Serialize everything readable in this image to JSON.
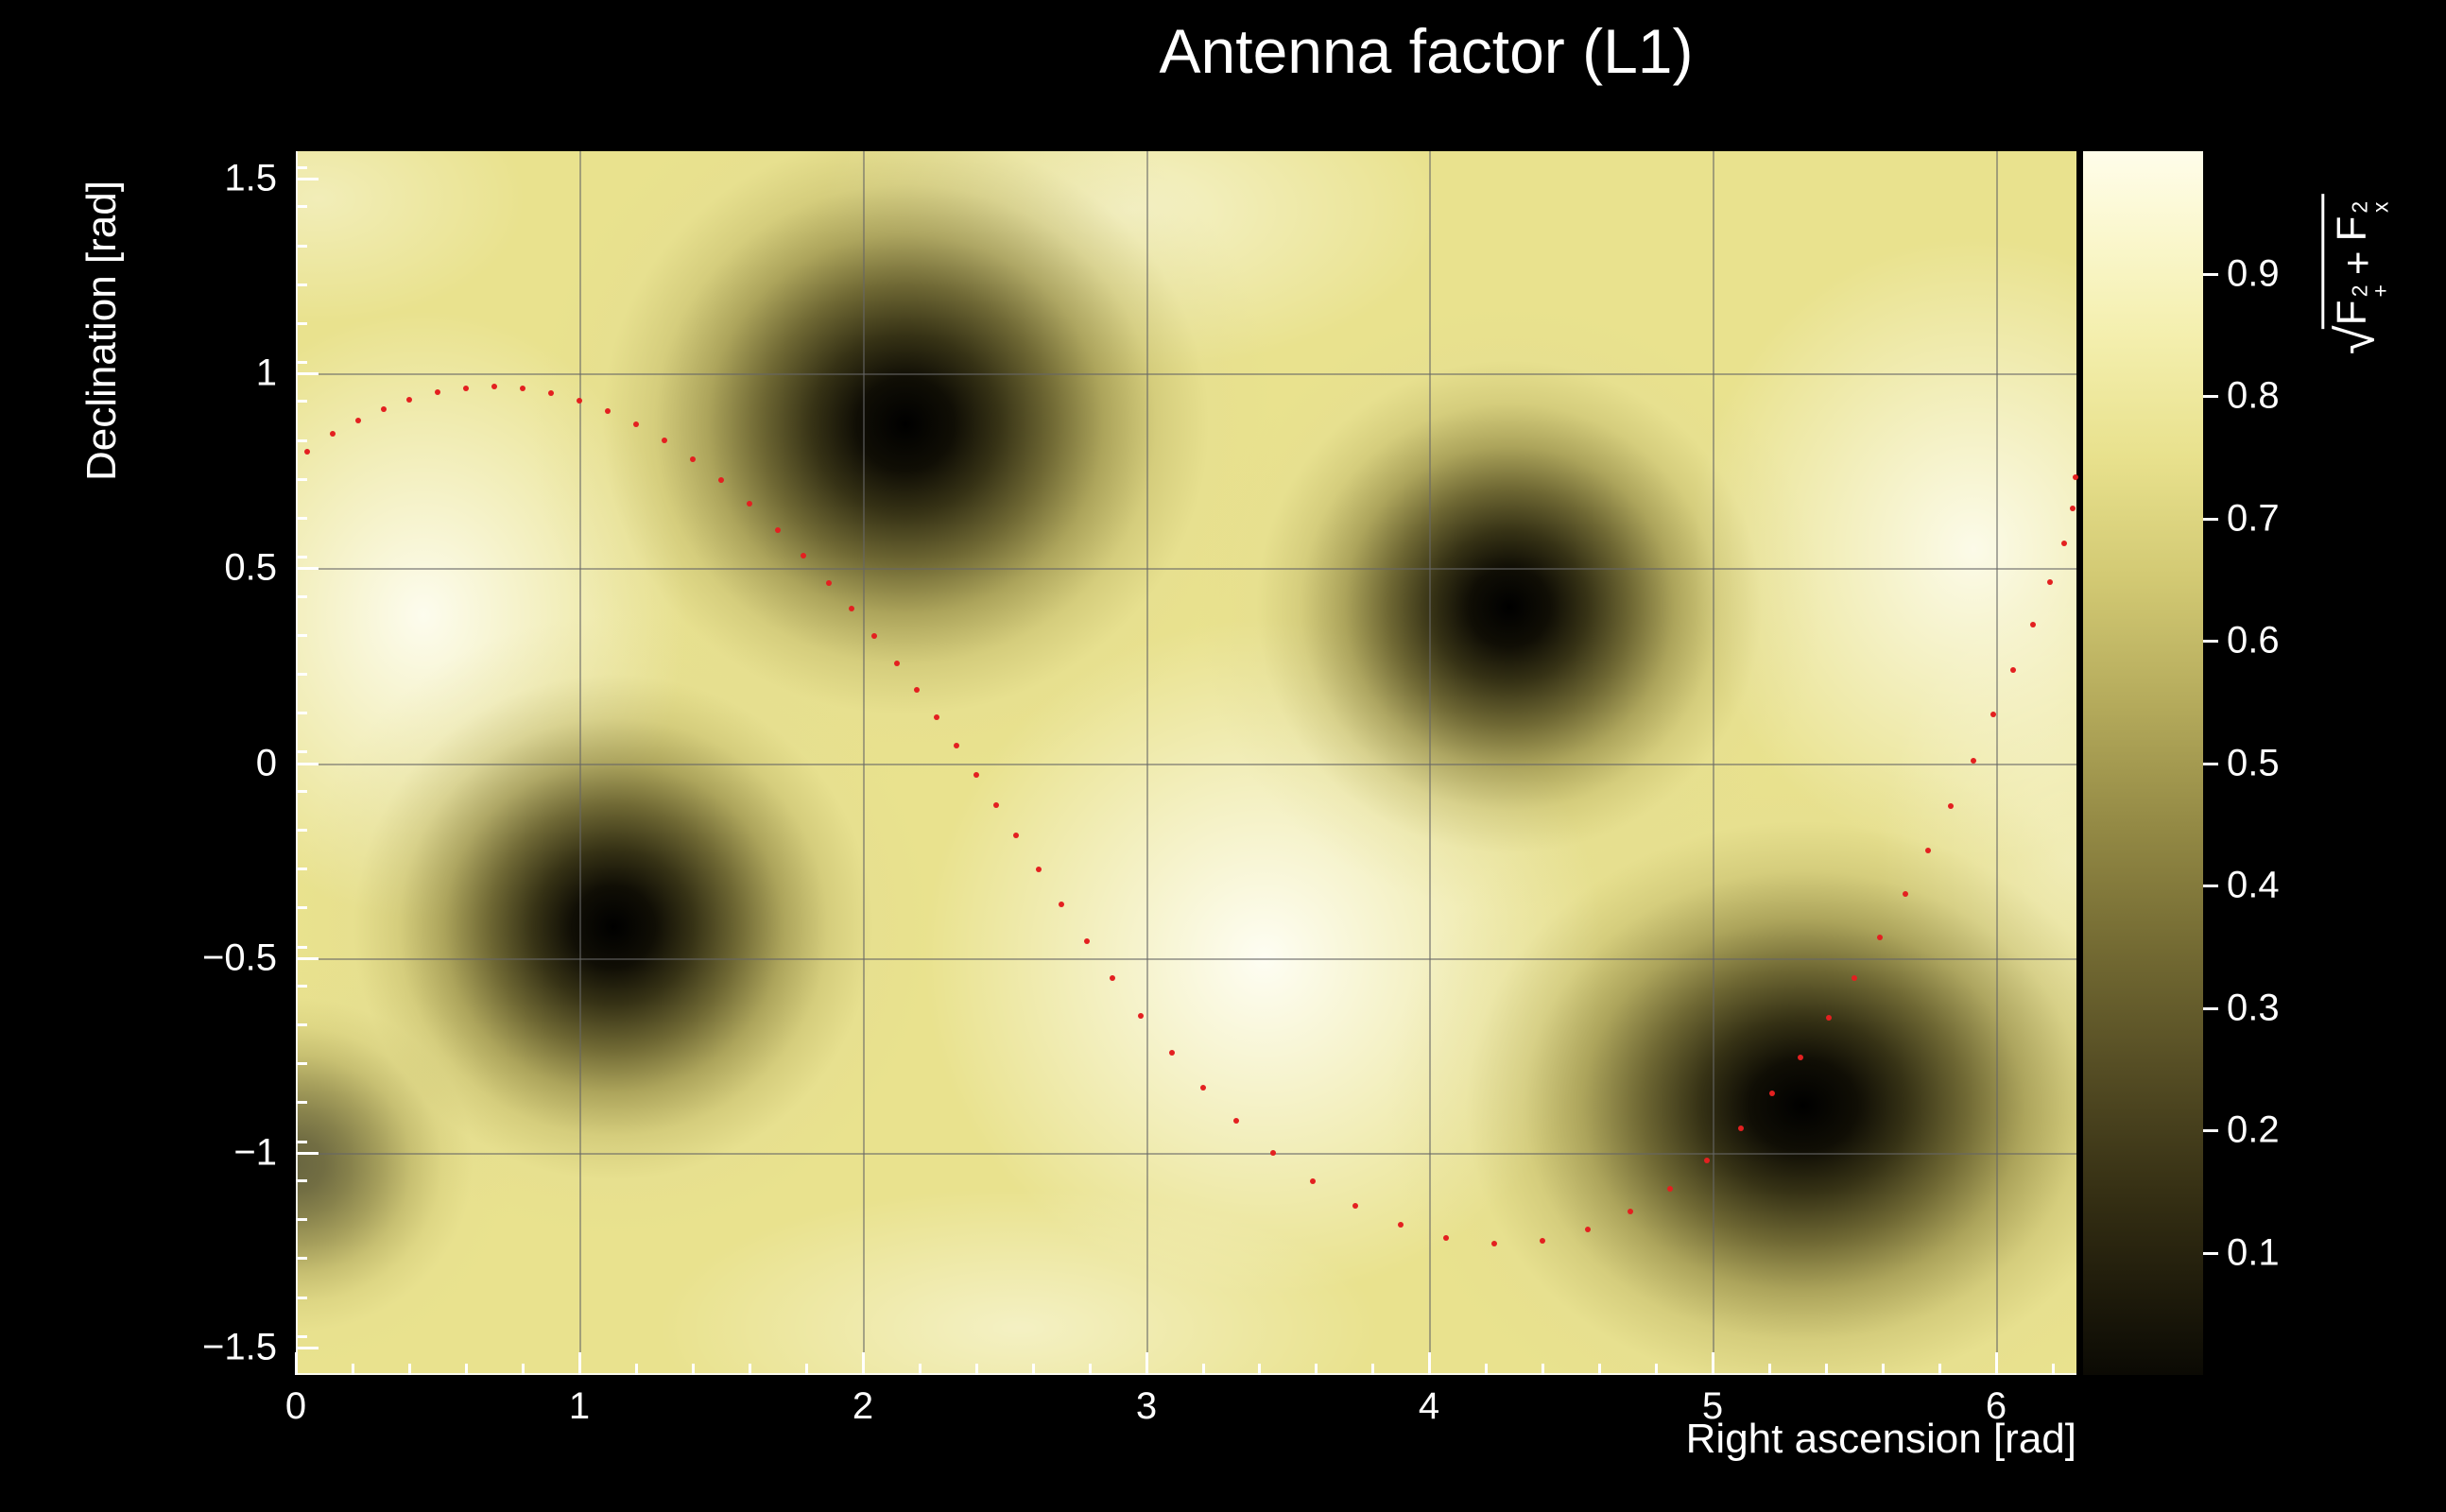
{
  "chart_data": {
    "type": "heatmap",
    "title": "Antenna factor (L1)",
    "xlabel": "Right ascension [rad]",
    "ylabel": "Declination [rad]",
    "zlabel": "sqrt(F_+^2 + F_x^2)",
    "xlim": [
      0,
      6.2832
    ],
    "ylim": [
      -1.5708,
      1.5708
    ],
    "zlim": [
      0,
      1
    ],
    "grid": {
      "x": [
        1,
        2,
        3,
        4,
        5,
        6
      ],
      "y": [
        -1,
        -0.5,
        0,
        0.5,
        1
      ]
    },
    "x_minor_step": 0.2,
    "y_minor_step": 0.1,
    "base_value": 0.62,
    "minima": [
      {
        "x": 2.15,
        "y": 0.87,
        "value": 0.02,
        "rx": 1.32,
        "ry": 0.92,
        "strength": 1
      },
      {
        "x": 4.28,
        "y": 0.4,
        "value": 0.02,
        "rx": 1.1,
        "ry": 0.78,
        "strength": 1
      },
      {
        "x": 1.12,
        "y": -0.42,
        "value": 0.02,
        "rx": 1.13,
        "ry": 0.8,
        "strength": 1
      },
      {
        "x": 5.32,
        "y": -0.88,
        "value": 0.02,
        "rx": 1.47,
        "ry": 0.9,
        "strength": 1
      },
      {
        "x": 0.0,
        "y": -1.03,
        "value": 0.3,
        "rx": 0.77,
        "ry": 0.53,
        "strength": 0.55
      }
    ],
    "maxima": [
      {
        "x": 0.45,
        "y": 0.38,
        "value": 0.95,
        "rx": 0.93,
        "ry": 0.78,
        "a": 0.9
      },
      {
        "x": 3.42,
        "y": -0.5,
        "value": 0.97,
        "rx": 1.2,
        "ry": 0.87,
        "a": 0.95
      },
      {
        "x": 5.92,
        "y": 0.55,
        "value": 0.95,
        "rx": 1.0,
        "ry": 0.8,
        "a": 0.85
      },
      {
        "x": 2.95,
        "y": 1.42,
        "value": 0.85,
        "rx": 1.1,
        "ry": 0.41,
        "a": 0.55
      },
      {
        "x": 0.08,
        "y": 1.45,
        "value": 0.8,
        "rx": 0.73,
        "ry": 0.32,
        "a": 0.4
      },
      {
        "x": 2.55,
        "y": -1.45,
        "value": 0.85,
        "rx": 1.27,
        "ry": 0.36,
        "a": 0.5
      },
      {
        "x": 6.25,
        "y": -0.25,
        "value": 0.8,
        "rx": 0.67,
        "ry": 0.68,
        "a": 0.4
      }
    ],
    "track": {
      "style": "dotted",
      "color": "#e32020",
      "points": [
        [
          0.04,
          0.8
        ],
        [
          0.13,
          0.845
        ],
        [
          0.22,
          0.88
        ],
        [
          0.31,
          0.908
        ],
        [
          0.4,
          0.932
        ],
        [
          0.5,
          0.951
        ],
        [
          0.6,
          0.963
        ],
        [
          0.7,
          0.967
        ],
        [
          0.8,
          0.963
        ],
        [
          0.9,
          0.95
        ],
        [
          1.0,
          0.93
        ],
        [
          1.1,
          0.903
        ],
        [
          1.2,
          0.869
        ],
        [
          1.3,
          0.828
        ],
        [
          1.4,
          0.781
        ],
        [
          1.5,
          0.727
        ],
        [
          1.6,
          0.666
        ],
        [
          1.7,
          0.598
        ],
        [
          1.79,
          0.532
        ],
        [
          1.88,
          0.462
        ],
        [
          1.96,
          0.396
        ],
        [
          2.04,
          0.327
        ],
        [
          2.12,
          0.255
        ],
        [
          2.19,
          0.188
        ],
        [
          2.26,
          0.118
        ],
        [
          2.33,
          0.045
        ],
        [
          2.4,
          -0.03
        ],
        [
          2.47,
          -0.107
        ],
        [
          2.54,
          -0.186
        ],
        [
          2.62,
          -0.274
        ],
        [
          2.7,
          -0.362
        ],
        [
          2.79,
          -0.458
        ],
        [
          2.88,
          -0.552
        ],
        [
          2.98,
          -0.648
        ],
        [
          3.09,
          -0.744
        ],
        [
          3.2,
          -0.833
        ],
        [
          3.32,
          -0.919
        ],
        [
          3.45,
          -1.0
        ],
        [
          3.59,
          -1.073
        ],
        [
          3.74,
          -1.136
        ],
        [
          3.9,
          -1.186
        ],
        [
          4.06,
          -1.219
        ],
        [
          4.23,
          -1.233
        ],
        [
          4.4,
          -1.226
        ],
        [
          4.56,
          -1.198
        ],
        [
          4.71,
          -1.152
        ],
        [
          4.85,
          -1.092
        ],
        [
          4.98,
          -1.02
        ],
        [
          5.1,
          -0.938
        ],
        [
          5.21,
          -0.849
        ],
        [
          5.31,
          -0.755
        ],
        [
          5.41,
          -0.655
        ],
        [
          5.5,
          -0.553
        ],
        [
          5.59,
          -0.447
        ],
        [
          5.68,
          -0.337
        ],
        [
          5.76,
          -0.225
        ],
        [
          5.84,
          -0.11
        ],
        [
          5.92,
          0.007
        ],
        [
          5.99,
          0.124
        ],
        [
          6.06,
          0.24
        ],
        [
          6.13,
          0.355
        ],
        [
          6.19,
          0.465
        ],
        [
          6.24,
          0.565
        ],
        [
          6.27,
          0.655
        ],
        [
          6.28,
          0.735
        ]
      ]
    },
    "colors": {
      "background": "#000000",
      "base": "#e9e28e",
      "highlight": "255,255,248",
      "grid": "rgba(102,102,102,0.55)",
      "axis": "#ffffff",
      "blob_ramp": [
        [
          0.0,
          "0,0,0",
          1.0
        ],
        [
          0.13,
          "16,14,5",
          1.0
        ],
        [
          0.25,
          "45,41,15",
          0.95
        ],
        [
          0.39,
          "90,83,36",
          0.85
        ],
        [
          0.53,
          "140,131,64",
          0.65
        ],
        [
          0.67,
          "185,176,100",
          0.42
        ],
        [
          0.81,
          "222,215,146",
          0.2
        ],
        [
          1.0,
          "233,226,142",
          0.0
        ]
      ]
    }
  },
  "axes": {
    "x_ticks": [
      {
        "v": 0,
        "label": "0"
      },
      {
        "v": 1,
        "label": "1"
      },
      {
        "v": 2,
        "label": "2"
      },
      {
        "v": 3,
        "label": "3"
      },
      {
        "v": 4,
        "label": "4"
      },
      {
        "v": 5,
        "label": "5"
      },
      {
        "v": 6,
        "label": "6"
      }
    ],
    "y_ticks": [
      {
        "v": 1.5,
        "label": "1.5"
      },
      {
        "v": 1,
        "label": "1"
      },
      {
        "v": 0.5,
        "label": "0.5"
      },
      {
        "v": 0,
        "label": "0"
      },
      {
        "v": -0.5,
        "label": "−0.5"
      },
      {
        "v": -1,
        "label": "−1"
      },
      {
        "v": -1.5,
        "label": "−1.5"
      }
    ]
  },
  "colorbar": {
    "ticks": [
      {
        "v": 0.9,
        "label": "0.9"
      },
      {
        "v": 0.8,
        "label": "0.8"
      },
      {
        "v": 0.7,
        "label": "0.7"
      },
      {
        "v": 0.6,
        "label": "0.6"
      },
      {
        "v": 0.5,
        "label": "0.5"
      },
      {
        "v": 0.4,
        "label": "0.4"
      },
      {
        "v": 0.3,
        "label": "0.3"
      },
      {
        "v": 0.2,
        "label": "0.2"
      },
      {
        "v": 0.1,
        "label": "0.1"
      }
    ],
    "stops": [
      {
        "v": 0.0,
        "c": "#0b0a04"
      },
      {
        "v": 0.08,
        "c": "#221e0c"
      },
      {
        "v": 0.15,
        "c": "#363014"
      },
      {
        "v": 0.25,
        "c": "#554d24"
      },
      {
        "v": 0.35,
        "c": "#746b33"
      },
      {
        "v": 0.45,
        "c": "#948a45"
      },
      {
        "v": 0.55,
        "c": "#b5ab5c"
      },
      {
        "v": 0.65,
        "c": "#d2c973"
      },
      {
        "v": 0.75,
        "c": "#e8e18d"
      },
      {
        "v": 0.85,
        "c": "#f4efae"
      },
      {
        "v": 0.93,
        "c": "#faf7cd"
      },
      {
        "v": 1.0,
        "c": "#fffdea"
      }
    ],
    "title_parts": {
      "radical": "√",
      "term1_base": "F",
      "term1_sup": "2",
      "term1_sub": "+",
      "op": "+",
      "term2_base": "F",
      "term2_sup": "2",
      "term2_sub": "x"
    }
  }
}
